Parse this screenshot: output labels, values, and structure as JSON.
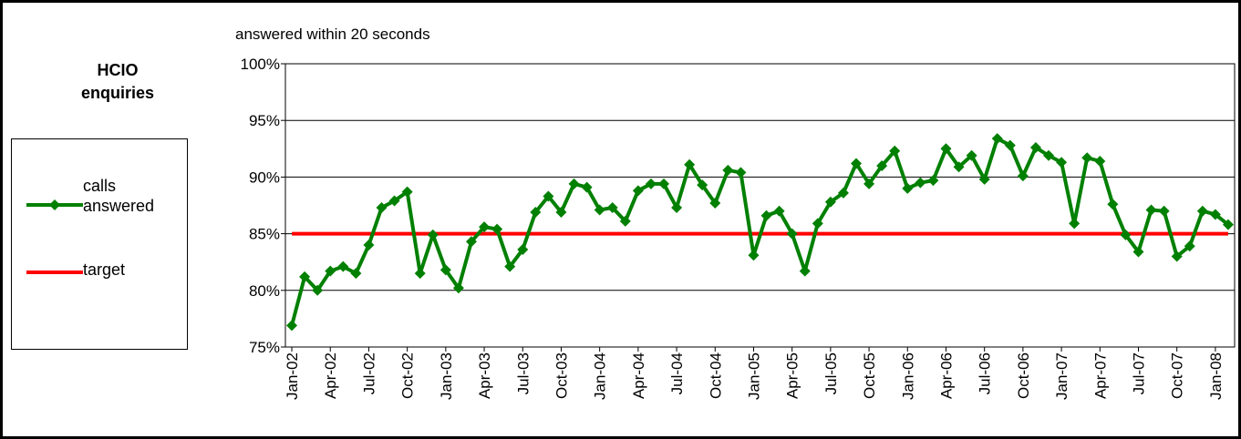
{
  "chart_data": {
    "type": "line",
    "title": "HCIO enquiries",
    "subtitle": "answered within 20 seconds",
    "categories": [
      "Jan-02",
      null,
      null,
      "Apr-02",
      null,
      null,
      "Jul-02",
      null,
      null,
      "Oct-02",
      null,
      null,
      "Jan-03",
      null,
      null,
      "Apr-03",
      null,
      null,
      "Jul-03",
      null,
      null,
      "Oct-03",
      null,
      null,
      "Jan-04",
      null,
      null,
      "Apr-04",
      null,
      null,
      "Jul-04",
      null,
      null,
      "Oct-04",
      null,
      null,
      "Jan-05",
      null,
      null,
      "Apr-05",
      null,
      null,
      "Jul-05",
      null,
      null,
      "Oct-05",
      null,
      null,
      "Jan-06",
      null,
      null,
      "Apr-06",
      null,
      null,
      "Jul-06",
      null,
      null,
      "Oct-06",
      null,
      null,
      "Jan-07",
      null,
      null,
      "Apr-07",
      null,
      null,
      "Jul-07",
      null,
      null,
      "Oct-07",
      null,
      null,
      "Jan-08",
      null
    ],
    "series": [
      {
        "name": "calls answered",
        "color": "#008000",
        "marker": "diamond",
        "values": [
          76.9,
          81.2,
          80.0,
          81.7,
          82.1,
          81.5,
          84.0,
          87.3,
          87.9,
          88.7,
          81.5,
          84.9,
          81.8,
          80.2,
          84.3,
          85.6,
          85.4,
          82.1,
          83.6,
          86.9,
          88.3,
          86.9,
          89.4,
          89.1,
          87.1,
          87.3,
          86.1,
          88.8,
          89.4,
          89.4,
          87.3,
          91.1,
          89.3,
          87.7,
          90.6,
          90.4,
          83.1,
          86.6,
          87.0,
          85.0,
          81.7,
          85.9,
          87.8,
          88.6,
          91.2,
          89.4,
          91.0,
          92.3,
          89.0,
          89.5,
          89.7,
          92.5,
          90.9,
          91.9,
          89.8,
          93.4,
          92.8,
          90.1,
          92.6,
          91.9,
          91.3,
          85.9,
          91.7,
          91.4,
          87.6,
          84.9,
          83.4,
          87.1,
          87.0,
          83.0,
          83.9,
          87.0,
          86.7,
          85.8
        ]
      },
      {
        "name": "target",
        "color": "#ff0000",
        "marker": "none",
        "values": [
          85,
          85,
          85,
          85,
          85,
          85,
          85,
          85,
          85,
          85,
          85,
          85,
          85,
          85,
          85,
          85,
          85,
          85,
          85,
          85,
          85,
          85,
          85,
          85,
          85,
          85,
          85,
          85,
          85,
          85,
          85,
          85,
          85,
          85,
          85,
          85,
          85,
          85,
          85,
          85,
          85,
          85,
          85,
          85,
          85,
          85,
          85,
          85,
          85,
          85,
          85,
          85,
          85,
          85,
          85,
          85,
          85,
          85,
          85,
          85,
          85,
          85,
          85,
          85,
          85,
          85,
          85,
          85,
          85,
          85,
          85,
          85,
          85,
          85
        ]
      }
    ],
    "ylim": [
      75,
      100
    ],
    "yticks": [
      {
        "value": 75,
        "label": "75%"
      },
      {
        "value": 80,
        "label": "80%"
      },
      {
        "value": 85,
        "label": "85%"
      },
      {
        "value": 90,
        "label": "90%"
      },
      {
        "value": 95,
        "label": "95%"
      },
      {
        "value": 100,
        "label": "100%"
      }
    ],
    "grid": true
  }
}
